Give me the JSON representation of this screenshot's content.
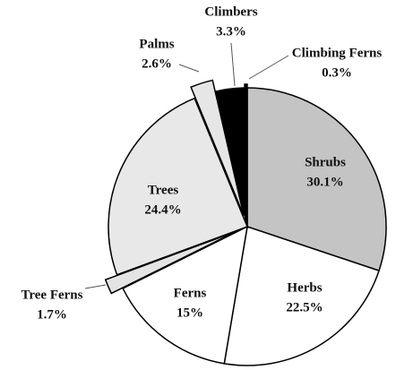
{
  "chart_data": {
    "type": "pie",
    "categories": [
      "Shrubs",
      "Herbs",
      "Ferns",
      "Tree Ferns",
      "Trees",
      "Palms",
      "Climbers",
      "Climbing Ferns"
    ],
    "values": [
      30.1,
      22.5,
      15,
      1.7,
      24.4,
      2.6,
      3.3,
      0.3
    ],
    "value_labels": [
      "30.1%",
      "22.5%",
      "15%",
      "1.7%",
      "24.4%",
      "2.6%",
      "3.3%",
      "0.3%"
    ],
    "colors": [
      "#c4c4c4",
      "#ffffff",
      "#ffffff",
      "#e4e4e4",
      "#e8e8e8",
      "#e6e6e6",
      "#000000",
      "#000000"
    ]
  }
}
